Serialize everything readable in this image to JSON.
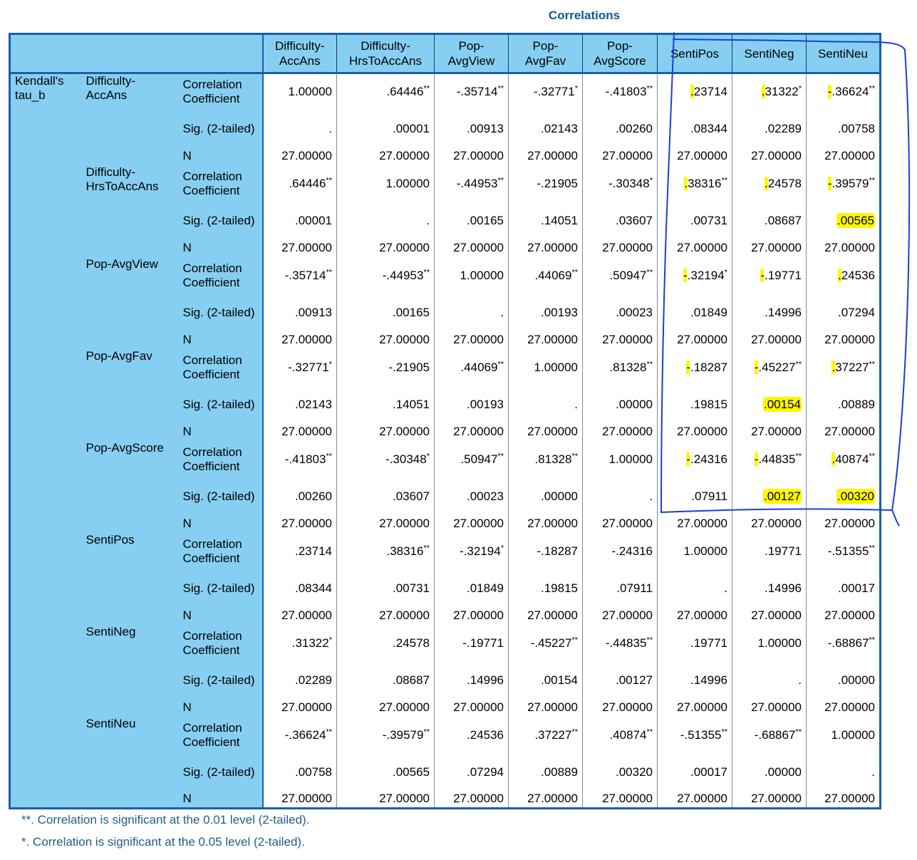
{
  "title": "Correlations",
  "method_label": "Kendall's tau_b",
  "columns": [
    "Difficulty-AccAns",
    "Difficulty-HrsToAccAns",
    "Pop-AvgView",
    "Pop-AvgFav",
    "Pop-AvgScore",
    "SentiPos",
    "SentiNeg",
    "SentiNeu"
  ],
  "stat_labels": {
    "corr": "Correlation Coefficient",
    "sig": "Sig. (2-tailed)",
    "n": "N"
  },
  "groups": [
    {
      "var": "Difficulty-AccAns",
      "corr": [
        [
          "1.00000",
          ""
        ],
        [
          ".64446",
          "**"
        ],
        [
          "-.35714",
          "**"
        ],
        [
          "-.32771",
          "*"
        ],
        [
          "-.41803",
          "**"
        ],
        [
          ".23714",
          ""
        ],
        [
          ".31322",
          "*"
        ],
        [
          "-.36624",
          "**"
        ]
      ],
      "sig": [
        "",
        ".00001",
        ".00913",
        ".02143",
        ".00260",
        ".08344",
        ".02289",
        ".00758"
      ],
      "n": [
        "27.00000",
        "27.00000",
        "27.00000",
        "27.00000",
        "27.00000",
        "27.00000",
        "27.00000",
        "27.00000"
      ]
    },
    {
      "var": "Difficulty-HrsToAccAns",
      "corr": [
        [
          ".64446",
          "**"
        ],
        [
          "1.00000",
          ""
        ],
        [
          "-.44953",
          "**"
        ],
        [
          "-.21905",
          ""
        ],
        [
          "-.30348",
          "*"
        ],
        [
          ".38316",
          "**"
        ],
        [
          ".24578",
          ""
        ],
        [
          "-.39579",
          "**"
        ]
      ],
      "sig": [
        ".00001",
        "",
        ".00165",
        ".14051",
        ".03607",
        ".00731",
        ".08687",
        ".00565"
      ],
      "n": [
        "27.00000",
        "27.00000",
        "27.00000",
        "27.00000",
        "27.00000",
        "27.00000",
        "27.00000",
        "27.00000"
      ]
    },
    {
      "var": "Pop-AvgView",
      "corr": [
        [
          "-.35714",
          "**"
        ],
        [
          "-.44953",
          "**"
        ],
        [
          "1.00000",
          ""
        ],
        [
          ".44069",
          "**"
        ],
        [
          ".50947",
          "**"
        ],
        [
          "-.32194",
          "*"
        ],
        [
          "-.19771",
          ""
        ],
        [
          ".24536",
          ""
        ]
      ],
      "sig": [
        ".00913",
        ".00165",
        "",
        ".00193",
        ".00023",
        ".01849",
        ".14996",
        ".07294"
      ],
      "n": [
        "27.00000",
        "27.00000",
        "27.00000",
        "27.00000",
        "27.00000",
        "27.00000",
        "27.00000",
        "27.00000"
      ]
    },
    {
      "var": "Pop-AvgFav",
      "corr": [
        [
          "-.32771",
          "*"
        ],
        [
          "-.21905",
          ""
        ],
        [
          ".44069",
          "**"
        ],
        [
          "1.00000",
          ""
        ],
        [
          ".81328",
          "**"
        ],
        [
          "-.18287",
          ""
        ],
        [
          "-.45227",
          "**"
        ],
        [
          ".37227",
          "**"
        ]
      ],
      "sig": [
        ".02143",
        ".14051",
        ".00193",
        "",
        ".00000",
        ".19815",
        ".00154",
        ".00889"
      ],
      "n": [
        "27.00000",
        "27.00000",
        "27.00000",
        "27.00000",
        "27.00000",
        "27.00000",
        "27.00000",
        "27.00000"
      ]
    },
    {
      "var": "Pop-AvgScore",
      "corr": [
        [
          "-.41803",
          "**"
        ],
        [
          "-.30348",
          "*"
        ],
        [
          ".50947",
          "**"
        ],
        [
          ".81328",
          "**"
        ],
        [
          "1.00000",
          ""
        ],
        [
          "-.24316",
          ""
        ],
        [
          "-.44835",
          "**"
        ],
        [
          ".40874",
          "**"
        ]
      ],
      "sig": [
        ".00260",
        ".03607",
        ".00023",
        ".00000",
        "",
        ".07911",
        ".00127",
        ".00320"
      ],
      "n": [
        "27.00000",
        "27.00000",
        "27.00000",
        "27.00000",
        "27.00000",
        "27.00000",
        "27.00000",
        "27.00000"
      ]
    },
    {
      "var": "SentiPos",
      "corr": [
        [
          ".23714",
          ""
        ],
        [
          ".38316",
          "**"
        ],
        [
          "-.32194",
          "*"
        ],
        [
          "-.18287",
          ""
        ],
        [
          "-.24316",
          ""
        ],
        [
          "1.00000",
          ""
        ],
        [
          ".19771",
          ""
        ],
        [
          "-.51355",
          "**"
        ]
      ],
      "sig": [
        ".08344",
        ".00731",
        ".01849",
        ".19815",
        ".07911",
        "",
        ".14996",
        ".00017"
      ],
      "n": [
        "27.00000",
        "27.00000",
        "27.00000",
        "27.00000",
        "27.00000",
        "27.00000",
        "27.00000",
        "27.00000"
      ]
    },
    {
      "var": "SentiNeg",
      "corr": [
        [
          ".31322",
          "*"
        ],
        [
          ".24578",
          ""
        ],
        [
          "-.19771",
          ""
        ],
        [
          "-.45227",
          "**"
        ],
        [
          "-.44835",
          "**"
        ],
        [
          ".19771",
          ""
        ],
        [
          "1.00000",
          ""
        ],
        [
          "-.68867",
          "**"
        ]
      ],
      "sig": [
        ".02289",
        ".08687",
        ".14996",
        ".00154",
        ".00127",
        ".14996",
        "",
        ".00000"
      ],
      "n": [
        "27.00000",
        "27.00000",
        "27.00000",
        "27.00000",
        "27.00000",
        "27.00000",
        "27.00000",
        "27.00000"
      ]
    },
    {
      "var": "SentiNeu",
      "corr": [
        [
          "-.36624",
          "**"
        ],
        [
          "-.39579",
          "**"
        ],
        [
          ".24536",
          ""
        ],
        [
          ".37227",
          "**"
        ],
        [
          ".40874",
          "**"
        ],
        [
          "-.51355",
          "**"
        ],
        [
          "-.68867",
          "**"
        ],
        [
          "1.00000",
          ""
        ]
      ],
      "sig": [
        ".00758",
        ".00565",
        ".07294",
        ".00889",
        ".00320",
        ".00017",
        ".00000",
        ""
      ],
      "n": [
        "27.00000",
        "27.00000",
        "27.00000",
        "27.00000",
        "27.00000",
        "27.00000",
        "27.00000",
        "27.00000"
      ]
    }
  ],
  "highlights": {
    "full_sig": [
      [
        1,
        7
      ],
      [
        3,
        6
      ],
      [
        4,
        6
      ],
      [
        4,
        7
      ]
    ],
    "tick_corr": [
      [
        0,
        5
      ],
      [
        0,
        6
      ],
      [
        0,
        7
      ],
      [
        1,
        5
      ],
      [
        1,
        6
      ],
      [
        1,
        7
      ],
      [
        2,
        5
      ],
      [
        2,
        6
      ],
      [
        2,
        7
      ],
      [
        3,
        5
      ],
      [
        3,
        6
      ],
      [
        3,
        7
      ],
      [
        4,
        5
      ],
      [
        4,
        6
      ],
      [
        4,
        7
      ]
    ]
  },
  "footnotes": [
    "**. Correlation is significant at the 0.01 level (2-tailed).",
    "*. Correlation is significant at the 0.05 level (2-tailed)."
  ],
  "colors": {
    "header_bg": "#86cff2",
    "border": "#1a5fa8",
    "highlight": "#fff700",
    "annotation_ink": "#1a3fd6",
    "footnote": "#1e5d8c"
  }
}
